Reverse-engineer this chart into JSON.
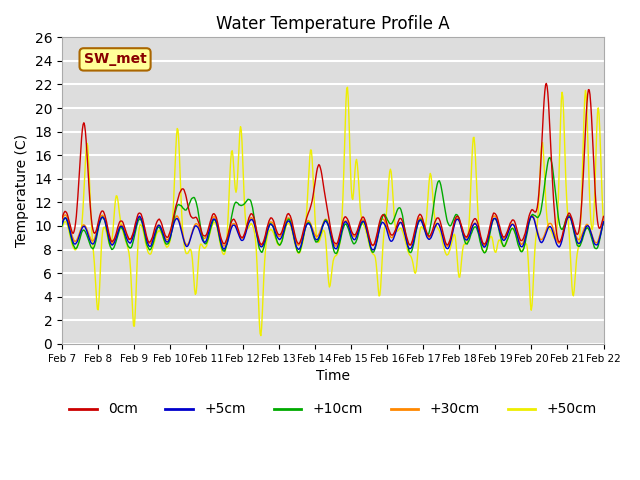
{
  "title": "Water Temperature Profile A",
  "xlabel": "Time",
  "ylabel": "Temperature (C)",
  "ylim": [
    0,
    26
  ],
  "background_color": "#dddddd",
  "grid_color": "white",
  "legend_labels": [
    "0cm",
    "+5cm",
    "+10cm",
    "+30cm",
    "+50cm"
  ],
  "legend_colors": [
    "#cc0000",
    "#0000cc",
    "#00aa00",
    "#ff8800",
    "#eeee00"
  ],
  "annotation_text": "SW_met",
  "annotation_bg": "#ffff99",
  "annotation_border": "#aa6600",
  "annotation_text_color": "#880000",
  "tick_dates": [
    "Feb 7",
    "Feb 8",
    "Feb 9",
    "Feb 10",
    "Feb 11",
    "Feb 12",
    "Feb 13",
    "Feb 14",
    "Feb 15",
    "Feb 16",
    "Feb 17",
    "Feb 18",
    "Feb 19",
    "Feb 20",
    "Feb 21",
    "Feb 22"
  ],
  "n_points": 720
}
